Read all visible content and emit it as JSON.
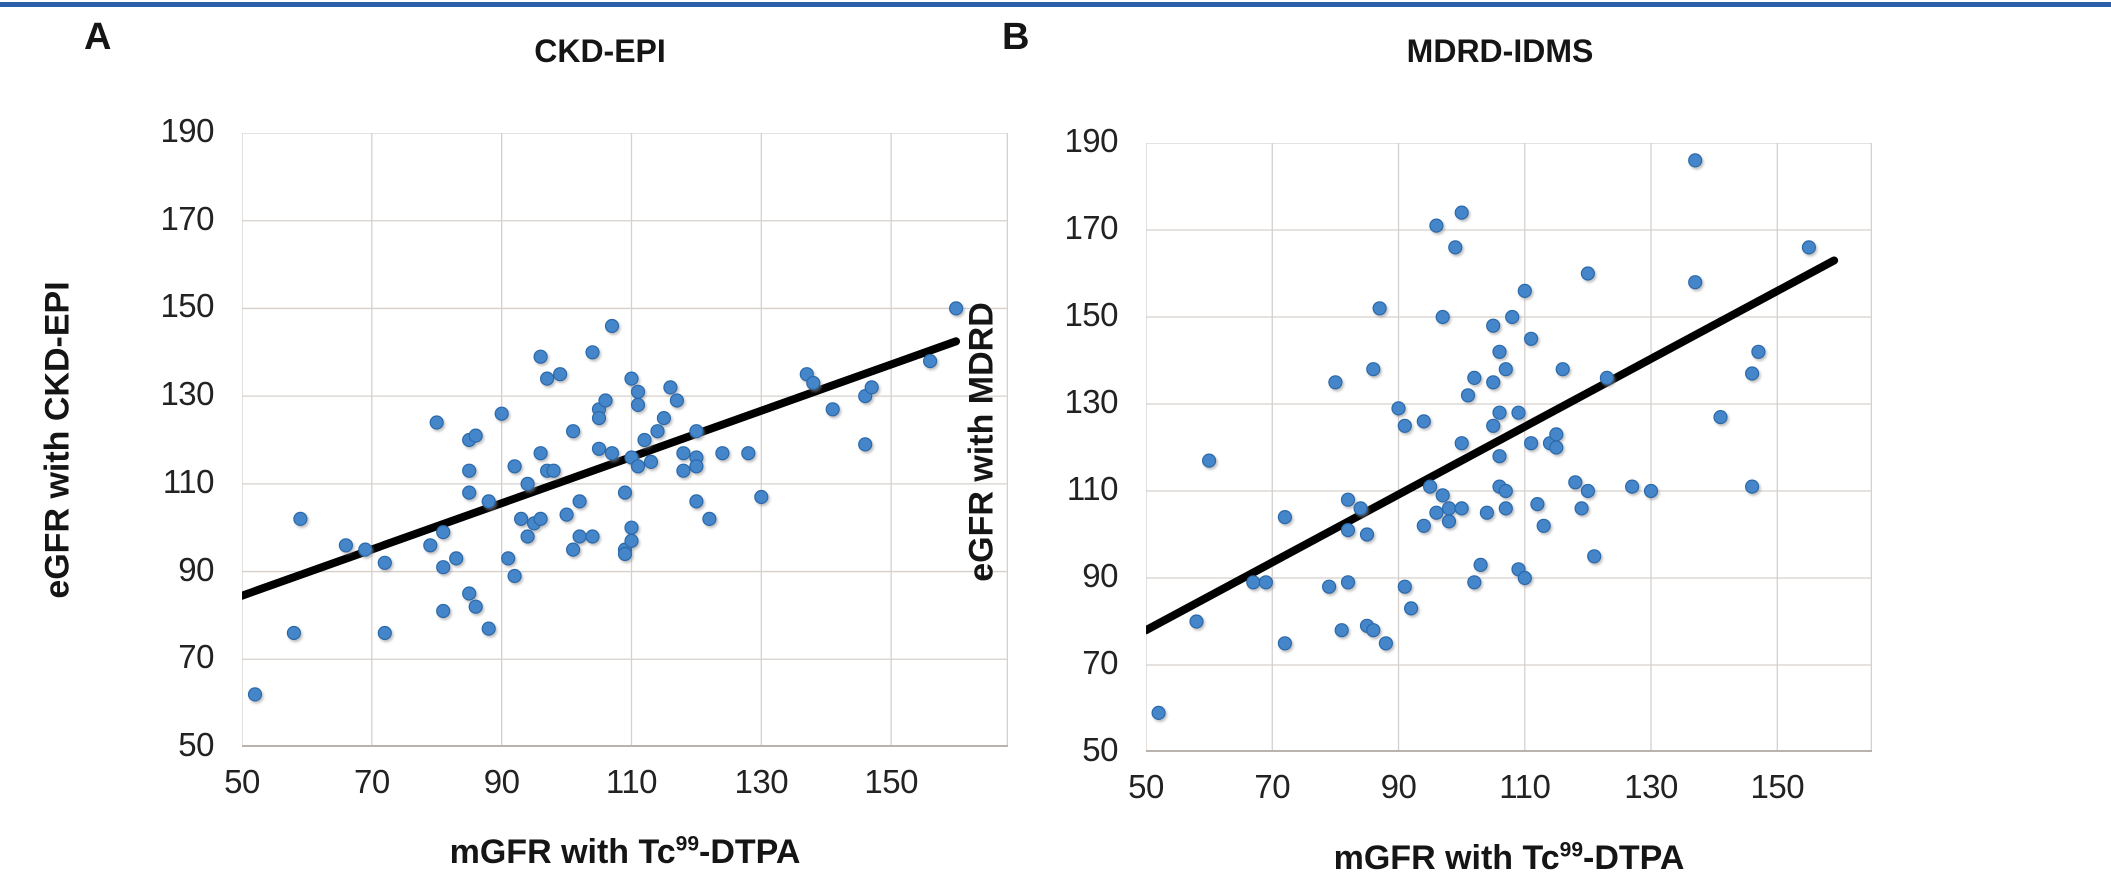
{
  "page": {
    "background": "#ffffff",
    "top_rule_color": "#2b5fa9"
  },
  "chart_data": [
    {
      "type": "scatter",
      "panel_letter": "A",
      "title": "CKD-EPI",
      "xlabel": "mGFR with Tc99-DTPA",
      "xlabel_parts": {
        "prefix": "mGFR with Tc",
        "sup": "99",
        "suffix": "-DTPA"
      },
      "ylabel": "eGFR with CKD-EPI",
      "xlim": [
        50,
        168
      ],
      "ylim": [
        50,
        190
      ],
      "xticks": [
        50,
        70,
        90,
        110,
        130,
        150
      ],
      "yticks": [
        50,
        70,
        90,
        110,
        130,
        150,
        170,
        190
      ],
      "grid": true,
      "legend": "none",
      "gridline_color": "#d6d0cc",
      "axis_line_color": "#b9b2ad",
      "marker_color": "#4486ca",
      "marker_edge_color": "#2b69a9",
      "trend_line_color": "#000000",
      "trendline": {
        "x1": 50,
        "y1": 84.5,
        "x2": 160,
        "y2": 142.5
      },
      "points": [
        [
          52,
          62
        ],
        [
          58,
          76
        ],
        [
          59,
          102
        ],
        [
          66,
          96
        ],
        [
          69,
          95
        ],
        [
          72,
          92
        ],
        [
          72,
          76
        ],
        [
          79,
          96
        ],
        [
          81,
          99
        ],
        [
          83,
          93
        ],
        [
          81,
          91
        ],
        [
          81,
          81
        ],
        [
          85,
          85
        ],
        [
          86,
          82
        ],
        [
          88,
          77
        ],
        [
          92,
          89
        ],
        [
          91,
          93
        ],
        [
          85,
          120
        ],
        [
          85,
          113
        ],
        [
          85,
          108
        ],
        [
          88,
          106
        ],
        [
          92,
          114
        ],
        [
          96,
          117
        ],
        [
          97,
          113
        ],
        [
          98,
          113
        ],
        [
          94,
          110
        ],
        [
          93,
          102
        ],
        [
          95,
          101
        ],
        [
          96,
          102
        ],
        [
          94,
          98
        ],
        [
          100,
          103
        ],
        [
          102,
          106
        ],
        [
          102,
          98
        ],
        [
          104,
          98
        ],
        [
          101,
          95
        ],
        [
          105,
          118
        ],
        [
          107,
          117
        ],
        [
          80,
          124
        ],
        [
          86,
          121
        ],
        [
          90,
          126
        ],
        [
          96,
          139
        ],
        [
          97,
          134
        ],
        [
          99,
          135
        ],
        [
          101,
          122
        ],
        [
          104,
          140
        ],
        [
          105,
          127
        ],
        [
          105,
          125
        ],
        [
          106,
          129
        ],
        [
          107,
          146
        ],
        [
          109,
          108
        ],
        [
          109,
          95
        ],
        [
          109,
          94
        ],
        [
          110,
          100
        ],
        [
          110,
          97
        ],
        [
          110,
          116
        ],
        [
          110,
          134
        ],
        [
          111,
          131
        ],
        [
          111,
          128
        ],
        [
          111,
          114
        ],
        [
          112,
          120
        ],
        [
          113,
          115
        ],
        [
          114,
          122
        ],
        [
          115,
          125
        ],
        [
          116,
          132
        ],
        [
          117,
          129
        ],
        [
          118,
          117
        ],
        [
          118,
          113
        ],
        [
          120,
          122
        ],
        [
          120,
          116
        ],
        [
          120,
          114
        ],
        [
          120,
          106
        ],
        [
          122,
          102
        ],
        [
          124,
          117
        ],
        [
          128,
          117
        ],
        [
          130,
          107
        ],
        [
          137,
          135
        ],
        [
          138,
          133
        ],
        [
          141,
          127
        ],
        [
          146,
          130
        ],
        [
          147,
          132
        ],
        [
          146,
          119
        ],
        [
          156,
          138
        ],
        [
          160,
          150
        ]
      ]
    },
    {
      "type": "scatter",
      "panel_letter": "B",
      "title": "MDRD-IDMS",
      "xlabel": "mGFR with Tc99-DTPA",
      "xlabel_parts": {
        "prefix": "mGFR with Tc",
        "sup": "99",
        "suffix": "-DTPA"
      },
      "ylabel": "eGFR with MDRD",
      "xlim": [
        50,
        165
      ],
      "ylim": [
        50,
        190
      ],
      "xticks": [
        50,
        70,
        90,
        110,
        130,
        150
      ],
      "yticks": [
        50,
        70,
        90,
        110,
        130,
        150,
        170,
        190
      ],
      "grid": true,
      "legend": "none",
      "gridline_color": "#d6d0cc",
      "axis_line_color": "#b9b2ad",
      "marker_color": "#4486ca",
      "marker_edge_color": "#2b69a9",
      "trend_line_color": "#000000",
      "trendline": {
        "x1": 50,
        "y1": 78,
        "x2": 159,
        "y2": 163
      },
      "points": [
        [
          52,
          59
        ],
        [
          58,
          80
        ],
        [
          60,
          117
        ],
        [
          67,
          89
        ],
        [
          69,
          89
        ],
        [
          72,
          75
        ],
        [
          72,
          104
        ],
        [
          79,
          88
        ],
        [
          81,
          78
        ],
        [
          82,
          89
        ],
        [
          82,
          101
        ],
        [
          85,
          79
        ],
        [
          86,
          78
        ],
        [
          88,
          75
        ],
        [
          85,
          100
        ],
        [
          91,
          88
        ],
        [
          92,
          83
        ],
        [
          94,
          102
        ],
        [
          96,
          105
        ],
        [
          98,
          106
        ],
        [
          98,
          103
        ],
        [
          100,
          106
        ],
        [
          104,
          105
        ],
        [
          107,
          106
        ],
        [
          112,
          107
        ],
        [
          113,
          102
        ],
        [
          82,
          108
        ],
        [
          84,
          106
        ],
        [
          102,
          89
        ],
        [
          103,
          93
        ],
        [
          109,
          92
        ],
        [
          110,
          90
        ],
        [
          121,
          95
        ],
        [
          80,
          135
        ],
        [
          86,
          138
        ],
        [
          90,
          129
        ],
        [
          91,
          125
        ],
        [
          94,
          126
        ],
        [
          95,
          111
        ],
        [
          97,
          109
        ],
        [
          100,
          121
        ],
        [
          106,
          118
        ],
        [
          106,
          111
        ],
        [
          107,
          110
        ],
        [
          111,
          121
        ],
        [
          114,
          121
        ],
        [
          115,
          120
        ],
        [
          115,
          123
        ],
        [
          118,
          112
        ],
        [
          120,
          110
        ],
        [
          119,
          106
        ],
        [
          127,
          111
        ],
        [
          130,
          110
        ],
        [
          146,
          111
        ],
        [
          101,
          132
        ],
        [
          102,
          136
        ],
        [
          105,
          135
        ],
        [
          105,
          125
        ],
        [
          106,
          128
        ],
        [
          109,
          128
        ],
        [
          106,
          142
        ],
        [
          107,
          138
        ],
        [
          116,
          138
        ],
        [
          111,
          145
        ],
        [
          105,
          148
        ],
        [
          108,
          150
        ],
        [
          87,
          152
        ],
        [
          97,
          150
        ],
        [
          99,
          166
        ],
        [
          96,
          171
        ],
        [
          100,
          174
        ],
        [
          110,
          156
        ],
        [
          120,
          160
        ],
        [
          123,
          136
        ],
        [
          137,
          158
        ],
        [
          137,
          186
        ],
        [
          141,
          127
        ],
        [
          146,
          137
        ],
        [
          147,
          142
        ],
        [
          155,
          166
        ]
      ]
    }
  ]
}
